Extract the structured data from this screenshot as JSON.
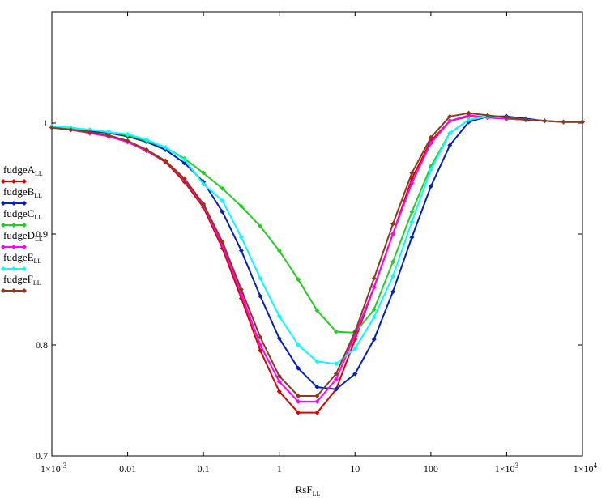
{
  "chart_data": {
    "type": "line",
    "xscale": "log",
    "xlim": [
      0.001,
      10000
    ],
    "ylim": [
      0.7,
      1.1
    ],
    "xlabel": {
      "main": "RsF",
      "sub": "LL"
    },
    "xticks": [
      {
        "value": 0.001,
        "label": "1×10",
        "sup": "-3"
      },
      {
        "value": 0.01,
        "label": "0.01",
        "sup": ""
      },
      {
        "value": 0.1,
        "label": "0.1",
        "sup": ""
      },
      {
        "value": 1,
        "label": "1",
        "sup": ""
      },
      {
        "value": 10,
        "label": "10",
        "sup": ""
      },
      {
        "value": 100,
        "label": "100",
        "sup": ""
      },
      {
        "value": 1000,
        "label": "1×10",
        "sup": "3"
      },
      {
        "value": 10000,
        "label": "1×10",
        "sup": "4"
      }
    ],
    "yticks": [
      {
        "value": 0.7,
        "label": "0.7"
      },
      {
        "value": 0.8,
        "label": "0.8"
      },
      {
        "value": 0.9,
        "label": "0.9"
      },
      {
        "value": 1.0,
        "label": "1"
      }
    ],
    "x": [
      0.001,
      0.00178,
      0.00316,
      0.00562,
      0.01,
      0.0178,
      0.0316,
      0.0562,
      0.1,
      0.178,
      0.316,
      0.562,
      1,
      1.78,
      3.16,
      5.62,
      10,
      17.8,
      31.6,
      56.2,
      100,
      178,
      316,
      562,
      1000,
      1780,
      3160,
      5620,
      10000
    ],
    "series": [
      {
        "name": "fudgeA",
        "sub": "LL",
        "color": "#e00000",
        "values": [
          0.996,
          0.994,
          0.991,
          0.988,
          0.983,
          0.975,
          0.965,
          0.947,
          0.924,
          0.887,
          0.842,
          0.795,
          0.758,
          0.739,
          0.739,
          0.76,
          0.805,
          0.852,
          0.9,
          0.95,
          0.984,
          1.002,
          1.006,
          1.005,
          1.004,
          1.003,
          1.002,
          1.001,
          1.001
        ]
      },
      {
        "name": "fudgeB",
        "sub": "LL",
        "color": "#0020c0",
        "values": [
          0.997,
          0.995,
          0.993,
          0.991,
          0.988,
          0.983,
          0.976,
          0.964,
          0.947,
          0.92,
          0.885,
          0.844,
          0.806,
          0.779,
          0.762,
          0.76,
          0.774,
          0.805,
          0.848,
          0.897,
          0.943,
          0.98,
          1.001,
          1.006,
          1.006,
          1.004,
          1.002,
          1.001,
          1.001
        ]
      },
      {
        "name": "fudgeC",
        "sub": "LL",
        "color": "#20d020",
        "values": [
          0.997,
          0.995,
          0.994,
          0.992,
          0.989,
          0.984,
          0.978,
          0.968,
          0.955,
          0.941,
          0.925,
          0.907,
          0.885,
          0.859,
          0.831,
          0.812,
          0.811,
          0.832,
          0.875,
          0.92,
          0.961,
          0.991,
          1.003,
          1.006,
          1.005,
          1.003,
          1.002,
          1.001,
          1.001
        ]
      },
      {
        "name": "fudgeD",
        "sub": "LL",
        "color": "#ff00ff",
        "values": [
          0.996,
          0.994,
          0.991,
          0.988,
          0.983,
          0.975,
          0.966,
          0.949,
          0.926,
          0.89,
          0.846,
          0.8,
          0.767,
          0.749,
          0.749,
          0.769,
          0.809,
          0.852,
          0.9,
          0.946,
          0.982,
          1.002,
          1.007,
          1.005,
          1.004,
          1.003,
          1.002,
          1.001,
          1.001
        ]
      },
      {
        "name": "fudgeE",
        "sub": "LL",
        "color": "#00ffff",
        "values": [
          0.997,
          0.996,
          0.994,
          0.992,
          0.99,
          0.985,
          0.978,
          0.967,
          0.945,
          0.93,
          0.897,
          0.86,
          0.826,
          0.8,
          0.785,
          0.783,
          0.797,
          0.825,
          0.862,
          0.911,
          0.958,
          0.991,
          1.003,
          1.006,
          1.005,
          1.003,
          1.002,
          1.001,
          1.001
        ]
      },
      {
        "name": "fudgeF",
        "sub": "LL",
        "color": "#8b3a1a",
        "values": [
          0.996,
          0.994,
          0.992,
          0.989,
          0.984,
          0.976,
          0.966,
          0.95,
          0.927,
          0.893,
          0.85,
          0.807,
          0.772,
          0.754,
          0.754,
          0.774,
          0.812,
          0.86,
          0.909,
          0.955,
          0.987,
          1.006,
          1.009,
          1.007,
          1.005,
          1.003,
          1.002,
          1.001,
          1.001
        ]
      }
    ]
  }
}
